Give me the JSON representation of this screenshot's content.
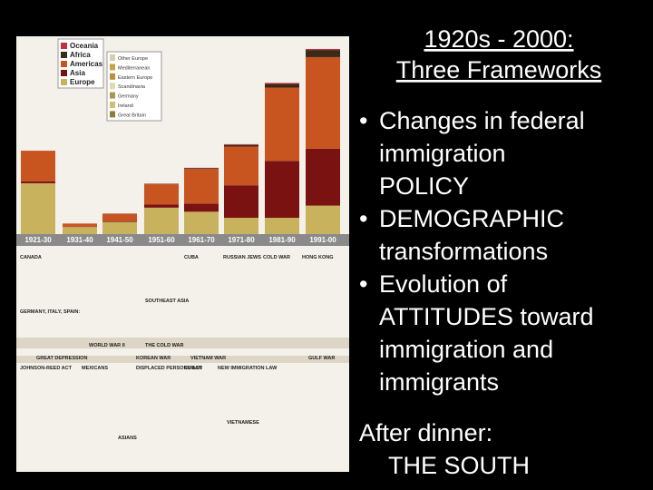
{
  "slide": {
    "title": [
      "1920s - 2000:",
      "Three Frameworks"
    ],
    "bullets": [
      [
        "Changes in federal",
        "immigration",
        "POLICY"
      ],
      [
        "DEMOGRAPHIC",
        "transformations"
      ],
      [
        "Evolution of",
        "ATTITUDES toward",
        "immigration and",
        "immigrants"
      ]
    ],
    "footer": [
      "After dinner:",
      "THE SOUTH"
    ]
  },
  "chart_data": {
    "type": "bar",
    "stacked": true,
    "categories": [
      "1921-30",
      "1931-40",
      "1941-50",
      "1951-60",
      "1961-70",
      "1971-80",
      "1981-90",
      "1991-00"
    ],
    "series": [
      {
        "name": "Europe",
        "color": "#c9b25e",
        "values": [
          2.5,
          0.35,
          0.6,
          1.3,
          1.1,
          0.8,
          0.8,
          1.4
        ]
      },
      {
        "name": "Asia",
        "color": "#7a1212",
        "values": [
          0.1,
          0.02,
          0.04,
          0.15,
          0.4,
          1.6,
          2.8,
          2.8
        ]
      },
      {
        "name": "Americas",
        "color": "#c8541f",
        "values": [
          1.5,
          0.15,
          0.35,
          1.0,
          1.7,
          1.9,
          3.6,
          4.5
        ]
      },
      {
        "name": "Africa",
        "color": "#3b2a18",
        "values": [
          0,
          0,
          0.01,
          0.02,
          0.04,
          0.08,
          0.18,
          0.35
        ]
      },
      {
        "name": "Oceania",
        "color": "#c3303f",
        "values": [
          0,
          0,
          0.01,
          0.01,
          0.02,
          0.04,
          0.05,
          0.05
        ]
      }
    ],
    "ylim": [
      0,
      9.5
    ],
    "europe_legend": [
      "Other Europe",
      "Mediterranean",
      "Eastern Europe",
      "Scandinavia",
      "Germany",
      "Ireland",
      "Great Britain"
    ],
    "timeline": [
      "CANADA",
      "CUBA",
      "RUSSIAN JEWS",
      "COLD WAR",
      "HONG KONG",
      "SOUTHEAST ASIA",
      "GERMANY, ITALY, SPAIN:",
      "WORLD WAR II",
      "THE COLD WAR",
      "GREAT DEPRESSION",
      "KOREAN WAR",
      "VIETNAM WAR",
      "GULF WAR",
      "JOHNSON-REED ACT",
      "MEXICANS",
      "DISPLACED PERSONS ACT",
      "CUBAN",
      "NEW IMMIGRATION LAW",
      "VIETNAMESE",
      "ASIANS"
    ]
  }
}
